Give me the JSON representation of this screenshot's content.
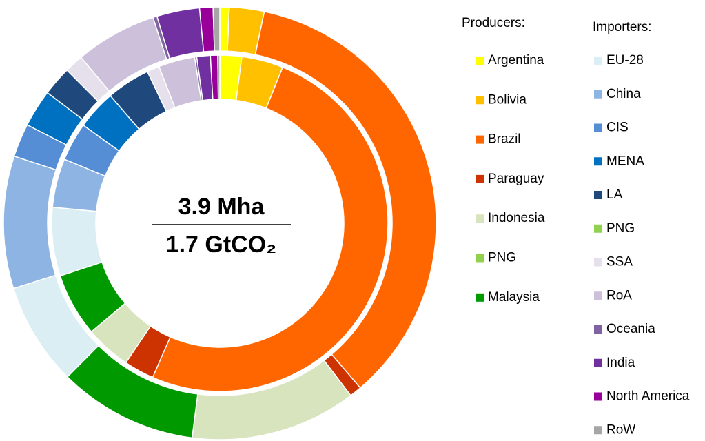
{
  "chart_data": {
    "type": "nested-donut",
    "center_top": "3.9 Mha",
    "center_bottom": "1.7 GtCO₂",
    "groups": [
      {
        "title": "Producers:",
        "names": [
          "Argentina",
          "Bolivia",
          "Brazil",
          "Paraguay",
          "Indonesia",
          "PNG",
          "Malaysia"
        ],
        "colors": [
          "#ffff00",
          "#ffc000",
          "#ff6600",
          "#cc3300",
          "#d7e4bd",
          "#92d050",
          "#009a00"
        ]
      },
      {
        "title": "Importers:",
        "names": [
          "EU-28",
          "China",
          "CIS",
          "MENA",
          "LA",
          "PNG",
          "SSA",
          "RoA",
          "Oceania",
          "India",
          "North America",
          "RoW"
        ],
        "colors": [
          "#dbeef4",
          "#8eb4e3",
          "#558ed5",
          "#0070c0",
          "#1f497d",
          "#92d050",
          "#e6e0ec",
          "#ccc0da",
          "#8064a2",
          "#7030a0",
          "#990099",
          "#a6a6a6"
        ]
      }
    ],
    "series": [
      {
        "values": [
          [
            2.1,
            4.0,
            50.5,
            2.9,
            4.4,
            0,
            6.1
          ],
          [
            6.6,
            4.7,
            3.7,
            3.8,
            4.2,
            0,
            1.2,
            3.5,
            0.2,
            1.3,
            0.7,
            0.2
          ]
        ]
      },
      {
        "values": [
          [
            0.7,
            2.6,
            35.5,
            0.9,
            12.4,
            0,
            10.4
          ],
          [
            7.7,
            9.9,
            2.5,
            2.8,
            2.2,
            0,
            1.4,
            6.1,
            0.3,
            3.2,
            1.0,
            0.5
          ]
        ]
      }
    ]
  }
}
